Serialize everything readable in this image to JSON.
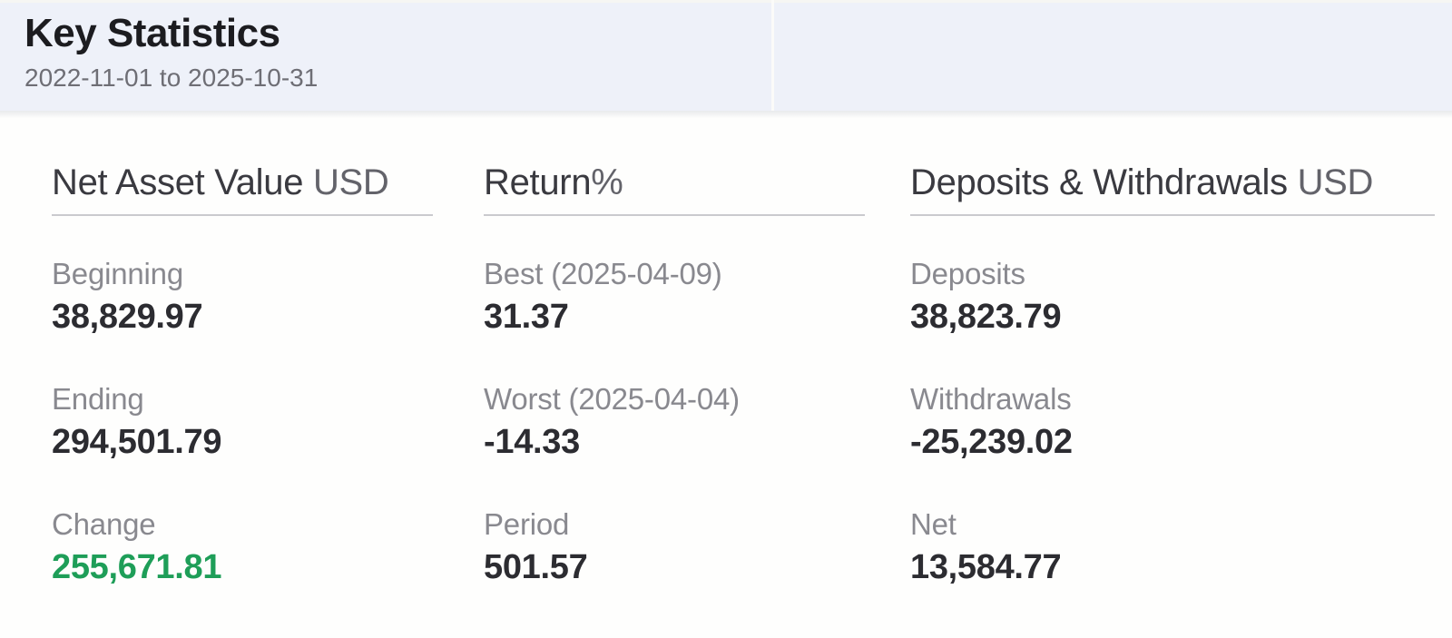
{
  "header": {
    "title": "Key Statistics",
    "date_range": "2022-11-01 to 2025-10-31"
  },
  "colors": {
    "header_bg": "#eef1f9",
    "content_bg": "#fefefd",
    "positive_value": "#1e9e58",
    "label_gray": "#89898f",
    "value_dark": "#2c2c31",
    "divider": "#cacace"
  },
  "columns": [
    {
      "title": "Net Asset Value",
      "title_suffix": " USD",
      "rows": [
        {
          "label": "Beginning",
          "value": "38,829.97"
        },
        {
          "label": "Ending",
          "value": "294,501.79"
        },
        {
          "label": "Change",
          "value": "255,671.81"
        }
      ]
    },
    {
      "title": "Return",
      "title_suffix": "%",
      "rows": [
        {
          "label": "Best (2025-04-09)",
          "value": "31.37"
        },
        {
          "label": "Worst (2025-04-04)",
          "value": "-14.33"
        },
        {
          "label": "Period",
          "value": "501.57"
        }
      ]
    },
    {
      "title": "Deposits & Withdrawals",
      "title_suffix": " USD",
      "rows": [
        {
          "label": "Deposits",
          "value": "38,823.79"
        },
        {
          "label": "Withdrawals",
          "value": "-25,239.02"
        },
        {
          "label": "Net",
          "value": "13,584.77"
        }
      ]
    }
  ]
}
